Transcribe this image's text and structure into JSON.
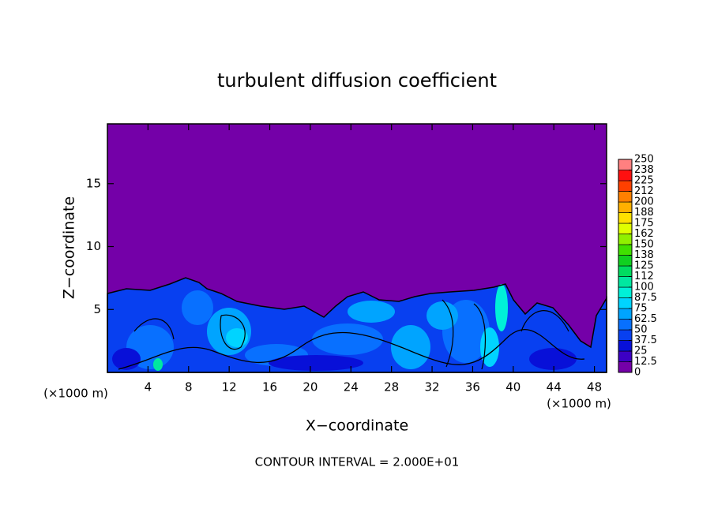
{
  "chart_data": {
    "type": "contour",
    "title": "turbulent diffusion coefficient",
    "x_label": "X−coordinate",
    "y_label": "Z−coordinate",
    "x_unit_label": "(×1000 m)",
    "note": "CONTOUR INTERVAL = 2.000E+01",
    "xlim": [
      0,
      49.2
    ],
    "ylim": [
      0,
      19.75
    ],
    "xticks": [
      4,
      8,
      12,
      16,
      20,
      24,
      28,
      32,
      36,
      40,
      44,
      48
    ],
    "yticks": [
      5,
      10,
      15
    ],
    "colorbar_ticks": [
      0,
      12.5,
      25,
      37.5,
      50,
      62.5,
      75,
      87.5,
      100,
      {
        "value": 112.5,
        "label": "112"
      },
      125,
      {
        "value": 137.5,
        "label": "138"
      },
      150,
      {
        "value": 162.5,
        "label": "162"
      },
      175,
      {
        "value": 187.5,
        "label": "188"
      },
      200,
      {
        "value": 212.5,
        "label": "212"
      },
      225,
      {
        "value": 237.5,
        "label": "238"
      },
      250
    ],
    "colors": [
      "#7400a8",
      "#3c00c4",
      "#0810d8",
      "#0840f0",
      "#0870ff",
      "#00a4ff",
      "#00d4ff",
      "#00f0d8",
      "#00e8a0",
      "#00dc60",
      "#10d020",
      "#40e000",
      "#90f000",
      "#e0ff00",
      "#ffe000",
      "#ffb000",
      "#ff8000",
      "#ff4000",
      "#ff1010",
      "#ff8080"
    ]
  }
}
